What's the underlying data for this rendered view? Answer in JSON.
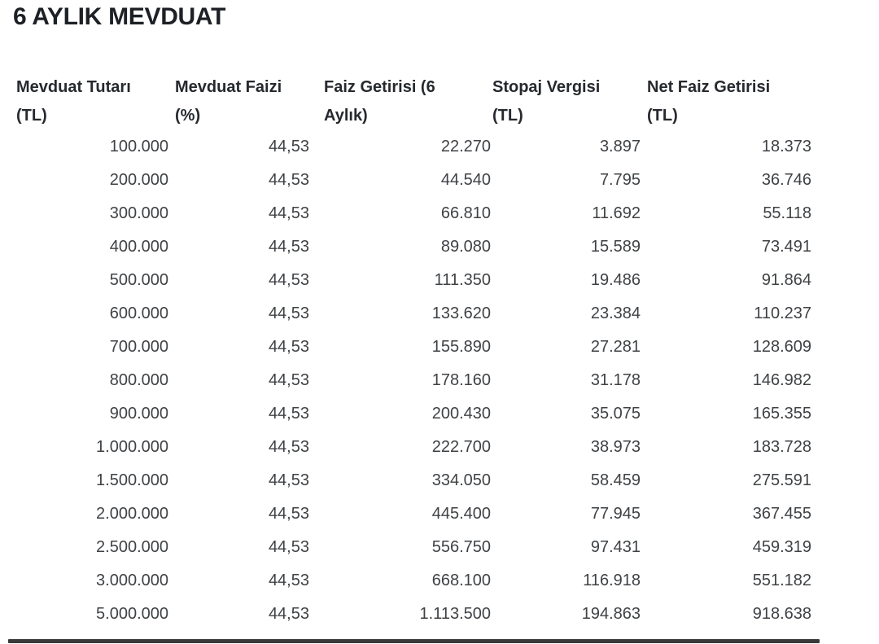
{
  "page": {
    "title": "6 AYLIK MEVDUAT"
  },
  "colors": {
    "background": "#ffffff",
    "title_text": "#1d2126",
    "header_text": "#26292e",
    "body_text": "#3f4245",
    "scrollbar": "#3a3a3a"
  },
  "table": {
    "columns": [
      {
        "label": "Mevduat Tutarı",
        "unit": "(TL)"
      },
      {
        "label": "Mevduat Faizi",
        "unit": "(%)"
      },
      {
        "label": "Faiz Getirisi (6",
        "unit": "Aylık)"
      },
      {
        "label": "Stopaj Vergisi",
        "unit": "(TL)"
      },
      {
        "label": "Net Faiz Getirisi",
        "unit": "(TL)"
      }
    ],
    "rows": [
      [
        "100.000",
        "44,53",
        "22.270",
        "3.897",
        "18.373"
      ],
      [
        "200.000",
        "44,53",
        "44.540",
        "7.795",
        "36.746"
      ],
      [
        "300.000",
        "44,53",
        "66.810",
        "11.692",
        "55.118"
      ],
      [
        "400.000",
        "44,53",
        "89.080",
        "15.589",
        "73.491"
      ],
      [
        "500.000",
        "44,53",
        "111.350",
        "19.486",
        "91.864"
      ],
      [
        "600.000",
        "44,53",
        "133.620",
        "23.384",
        "110.237"
      ],
      [
        "700.000",
        "44,53",
        "155.890",
        "27.281",
        "128.609"
      ],
      [
        "800.000",
        "44,53",
        "178.160",
        "31.178",
        "146.982"
      ],
      [
        "900.000",
        "44,53",
        "200.430",
        "35.075",
        "165.355"
      ],
      [
        "1.000.000",
        "44,53",
        "222.700",
        "38.973",
        "183.728"
      ],
      [
        "1.500.000",
        "44,53",
        "334.050",
        "58.459",
        "275.591"
      ],
      [
        "2.000.000",
        "44,53",
        "445.400",
        "77.945",
        "367.455"
      ],
      [
        "2.500.000",
        "44,53",
        "556.750",
        "97.431",
        "459.319"
      ],
      [
        "3.000.000",
        "44,53",
        "668.100",
        "116.918",
        "551.182"
      ],
      [
        "5.000.000",
        "44,53",
        "1.113.500",
        "194.863",
        "918.638"
      ]
    ]
  },
  "chart_data": {
    "type": "table",
    "title": "6 AYLIK MEVDUAT",
    "columns": [
      "Mevduat Tutarı (TL)",
      "Mevduat Faizi (%)",
      "Faiz Getirisi (6 Aylık)",
      "Stopaj Vergisi (TL)",
      "Net Faiz Getirisi (TL)"
    ],
    "rows": [
      [
        100000,
        44.53,
        22270,
        3897,
        18373
      ],
      [
        200000,
        44.53,
        44540,
        7795,
        36746
      ],
      [
        300000,
        44.53,
        66810,
        11692,
        55118
      ],
      [
        400000,
        44.53,
        89080,
        15589,
        73491
      ],
      [
        500000,
        44.53,
        111350,
        19486,
        91864
      ],
      [
        600000,
        44.53,
        133620,
        23384,
        110237
      ],
      [
        700000,
        44.53,
        155890,
        27281,
        128609
      ],
      [
        800000,
        44.53,
        178160,
        31178,
        146982
      ],
      [
        900000,
        44.53,
        200430,
        35075,
        165355
      ],
      [
        1000000,
        44.53,
        222700,
        38973,
        183728
      ],
      [
        1500000,
        44.53,
        334050,
        58459,
        275591
      ],
      [
        2000000,
        44.53,
        445400,
        77945,
        367455
      ],
      [
        2500000,
        44.53,
        556750,
        97431,
        459319
      ],
      [
        3000000,
        44.53,
        668100,
        116918,
        551182
      ],
      [
        5000000,
        44.53,
        1113500,
        194863,
        918638
      ]
    ]
  }
}
